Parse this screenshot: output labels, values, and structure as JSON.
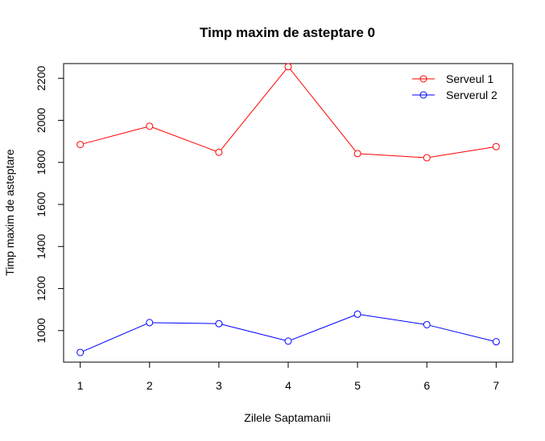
{
  "chart_data": {
    "type": "line",
    "title": "Timp maxim de asteptare 0",
    "xlabel": "Zilele Saptamanii",
    "ylabel": "Timp maxim de asteptare",
    "x": [
      1,
      2,
      3,
      4,
      5,
      6,
      7
    ],
    "xlim": [
      0.76,
      7.24
    ],
    "ylim": [
      850,
      2270
    ],
    "xticks": [
      1,
      2,
      3,
      4,
      5,
      6,
      7
    ],
    "yticks": [
      1000,
      1200,
      1400,
      1600,
      1800,
      2000,
      2200
    ],
    "grid": false,
    "legend_position": "top-right",
    "series": [
      {
        "name": "Serveul 1",
        "color": "#ff0000",
        "marker": "open-circle",
        "values": [
          1885,
          1972,
          1848,
          2255,
          1842,
          1822,
          1875
        ]
      },
      {
        "name": "Serverul 2",
        "color": "#0000ff",
        "marker": "open-circle",
        "values": [
          896,
          1038,
          1033,
          950,
          1078,
          1028,
          947
        ]
      }
    ]
  }
}
